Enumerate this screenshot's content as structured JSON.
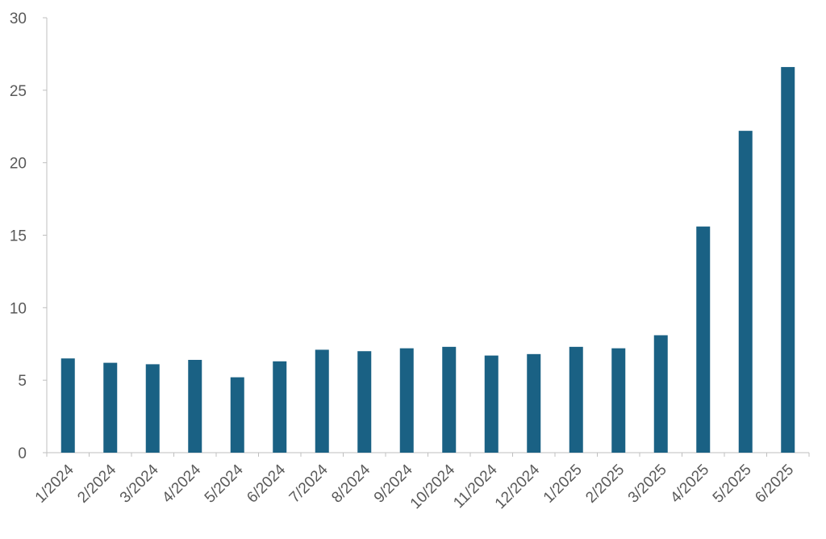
{
  "chart_data": {
    "type": "bar",
    "categories": [
      "1/2024",
      "2/2024",
      "3/2024",
      "4/2024",
      "5/2024",
      "6/2024",
      "7/2024",
      "8/2024",
      "9/2024",
      "10/2024",
      "11/2024",
      "12/2024",
      "1/2025",
      "2/2025",
      "3/2025",
      "4/2025",
      "5/2025",
      "6/2025"
    ],
    "series": [
      {
        "values": [
          6.5,
          6.2,
          6.1,
          6.4,
          5.2,
          6.3,
          7.1,
          7.0,
          7.2,
          7.3,
          6.7,
          6.8,
          7.3,
          7.2,
          8.1,
          15.6,
          22.2,
          26.6
        ],
        "color": "#1a6184"
      }
    ],
    "title": "",
    "xlabel": "",
    "ylabel": "",
    "ylim": [
      0,
      30
    ],
    "yticks": [
      0,
      5,
      10,
      15,
      20,
      25,
      30
    ],
    "grid": false,
    "legend": "none",
    "bar_color": "#1a6184"
  }
}
